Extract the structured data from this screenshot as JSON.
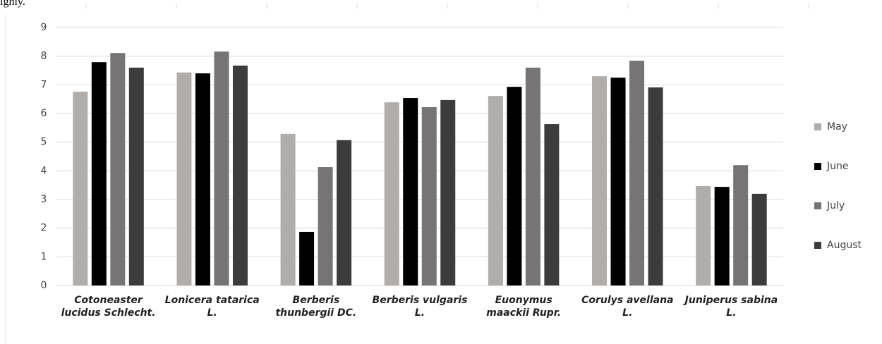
{
  "text_fragment": "ighly.",
  "chart_data": {
    "type": "bar",
    "categories": [
      "Cotoneaster lucidus Schlecht.",
      "Lonicera tatarica L.",
      "Berberis thunbergii DC.",
      "Berberis vulgaris L.",
      "Euonymus maackii Rupr.",
      "Corulys avellana L.",
      "Juniperus sabina L."
    ],
    "series": [
      {
        "name": "May",
        "color": "#b0adab",
        "values": [
          6.76,
          7.43,
          5.29,
          6.39,
          6.61,
          7.3,
          3.47
        ]
      },
      {
        "name": "June",
        "color": "#000000",
        "values": [
          7.79,
          7.4,
          1.87,
          6.54,
          6.93,
          7.25,
          3.44
        ]
      },
      {
        "name": "July",
        "color": "#767474",
        "values": [
          8.11,
          8.16,
          4.13,
          6.22,
          7.6,
          7.84,
          4.2
        ]
      },
      {
        "name": "August",
        "color": "#3c3c3c",
        "values": [
          7.6,
          7.67,
          5.07,
          6.47,
          5.63,
          6.91,
          3.2
        ]
      }
    ],
    "ylim": [
      0,
      9
    ],
    "yticks": [
      0,
      1,
      2,
      3,
      4,
      5,
      6,
      7,
      8,
      9
    ],
    "grid": true,
    "legend": "right"
  }
}
